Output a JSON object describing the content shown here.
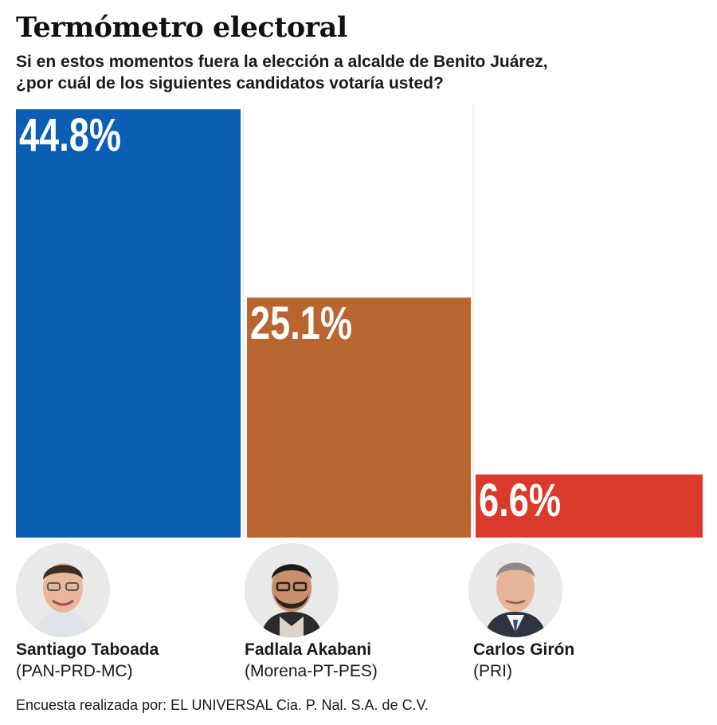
{
  "title": "Termómetro electoral",
  "subtitle_line1": "Si en estos momentos fuera la elección a alcalde de Benito Juárez,",
  "subtitle_line2": "¿por cuál de los siguientes candidatos votaría usted?",
  "chart_data": {
    "type": "bar",
    "title": "Termómetro electoral",
    "categories": [
      "Santiago Taboada (PAN-PRD-MC)",
      "Fadlala Akabani (Morena-PT-PES)",
      "Carlos Girón (PRI)"
    ],
    "values": [
      44.8,
      25.1,
      6.6
    ],
    "labels": [
      "44.8%",
      "25.1%",
      "6.6%"
    ],
    "colors": [
      "#0a5fb4",
      "#b86530",
      "#d93a2b"
    ],
    "ylim": [
      0,
      44.8
    ],
    "grid": false,
    "legend": "none"
  },
  "candidates": [
    {
      "name": "Santiago Taboada",
      "party": "(PAN-PRD-MC)",
      "icon": "candidate-photo-icon"
    },
    {
      "name": "Fadlala Akabani",
      "party": "(Morena-PT-PES)",
      "icon": "candidate-photo-icon"
    },
    {
      "name": "Carlos Girón",
      "party": "(PRI)",
      "icon": "candidate-photo-icon"
    }
  ],
  "source": "Encuesta realizada por: EL UNIVERSAL Cia. P. Nal. S.A. de C.V."
}
